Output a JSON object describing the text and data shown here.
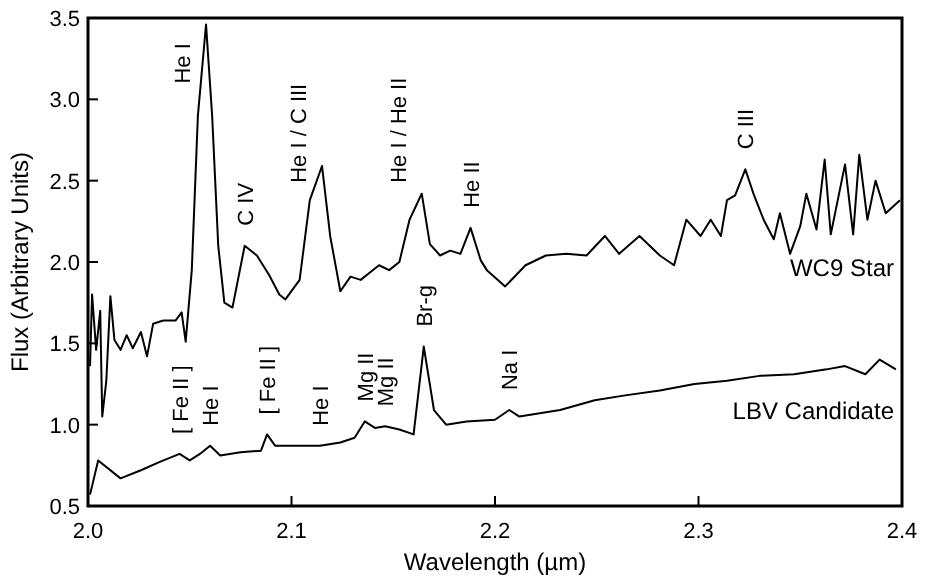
{
  "chart_data": {
    "type": "line",
    "xlabel": "Wavelength (µm)",
    "ylabel": "Flux (Arbitrary Units)",
    "xlim": [
      2.0,
      2.4
    ],
    "ylim": [
      0.5,
      3.5
    ],
    "xticks": [
      {
        "value": 2.0,
        "label": "2.0"
      },
      {
        "value": 2.1,
        "label": "2.1"
      },
      {
        "value": 2.2,
        "label": "2.2"
      },
      {
        "value": 2.3,
        "label": "2.3"
      },
      {
        "value": 2.4,
        "label": "2.4"
      }
    ],
    "yticks": [
      {
        "value": 0.5,
        "label": "0.5"
      },
      {
        "value": 1.0,
        "label": "1.0"
      },
      {
        "value": 1.5,
        "label": "1.5"
      },
      {
        "value": 2.0,
        "label": "2.0"
      },
      {
        "value": 2.5,
        "label": "2.5"
      },
      {
        "value": 3.0,
        "label": "3.0"
      },
      {
        "value": 3.5,
        "label": "3.5"
      }
    ],
    "grid": false,
    "marker": "none",
    "line_style": "solid",
    "series": [
      {
        "name": "WC9 Star",
        "color": "#000000",
        "x": [
          2.001,
          2.002,
          2.004,
          2.006,
          2.007,
          2.009,
          2.011,
          2.013,
          2.016,
          2.019,
          2.022,
          2.026,
          2.029,
          2.032,
          2.037,
          2.043,
          2.046,
          2.048,
          2.051,
          2.054,
          2.058,
          2.061,
          2.064,
          2.067,
          2.071,
          2.077,
          2.083,
          2.089,
          2.094,
          2.097,
          2.104,
          2.109,
          2.115,
          2.119,
          2.124,
          2.129,
          2.134,
          2.139,
          2.143,
          2.148,
          2.153,
          2.158,
          2.164,
          2.168,
          2.173,
          2.178,
          2.183,
          2.188,
          2.193,
          2.196,
          2.205,
          2.215,
          2.225,
          2.235,
          2.245,
          2.254,
          2.261,
          2.271,
          2.281,
          2.288,
          2.294,
          2.301,
          2.306,
          2.311,
          2.314,
          2.318,
          2.323,
          2.327,
          2.332,
          2.337,
          2.34,
          2.345,
          2.35,
          2.353,
          2.358,
          2.362,
          2.365,
          2.372,
          2.376,
          2.379,
          2.383,
          2.387,
          2.392,
          2.399
        ],
        "values": [
          1.36,
          1.8,
          1.46,
          1.7,
          1.05,
          1.27,
          1.79,
          1.52,
          1.46,
          1.55,
          1.47,
          1.57,
          1.42,
          1.62,
          1.64,
          1.64,
          1.69,
          1.51,
          1.95,
          2.9,
          3.46,
          2.9,
          2.1,
          1.75,
          1.72,
          2.1,
          2.04,
          1.92,
          1.8,
          1.77,
          1.89,
          2.38,
          2.59,
          2.16,
          1.82,
          1.91,
          1.89,
          1.94,
          1.98,
          1.95,
          2.0,
          2.26,
          2.42,
          2.11,
          2.04,
          2.07,
          2.05,
          2.21,
          2.01,
          1.95,
          1.85,
          1.98,
          2.04,
          2.05,
          2.04,
          2.16,
          2.05,
          2.16,
          2.04,
          1.98,
          2.26,
          2.16,
          2.26,
          2.16,
          2.38,
          2.41,
          2.57,
          2.42,
          2.26,
          2.14,
          2.3,
          2.05,
          2.22,
          2.42,
          2.2,
          2.63,
          2.17,
          2.6,
          2.17,
          2.66,
          2.26,
          2.5,
          2.3,
          2.38
        ]
      },
      {
        "name": "LBV Candidate",
        "color": "#000000",
        "x": [
          2.001,
          2.005,
          2.016,
          2.026,
          2.035,
          2.045,
          2.05,
          2.055,
          2.06,
          2.065,
          2.075,
          2.085,
          2.088,
          2.092,
          2.104,
          2.114,
          2.124,
          2.131,
          2.136,
          2.141,
          2.146,
          2.153,
          2.16,
          2.165,
          2.17,
          2.176,
          2.186,
          2.2,
          2.207,
          2.212,
          2.232,
          2.249,
          2.264,
          2.281,
          2.298,
          2.314,
          2.33,
          2.347,
          2.363,
          2.372,
          2.382,
          2.389,
          2.397
        ],
        "values": [
          0.57,
          0.78,
          0.67,
          0.72,
          0.77,
          0.82,
          0.78,
          0.82,
          0.87,
          0.81,
          0.83,
          0.84,
          0.94,
          0.87,
          0.87,
          0.87,
          0.89,
          0.92,
          1.02,
          0.98,
          0.99,
          0.97,
          0.94,
          1.48,
          1.09,
          1.0,
          1.02,
          1.03,
          1.09,
          1.05,
          1.09,
          1.15,
          1.18,
          1.21,
          1.25,
          1.27,
          1.3,
          1.31,
          1.34,
          1.36,
          1.31,
          1.4,
          1.34
        ]
      }
    ],
    "annotations": [
      {
        "text": "He I",
        "x": 2.058,
        "y": 3.46
      },
      {
        "text": "C IV",
        "x": 2.077,
        "y": 2.1
      },
      {
        "text": "He I / C III",
        "x": 2.115,
        "y": 2.59
      },
      {
        "text": "He I / He II",
        "x": 2.164,
        "y": 2.42
      },
      {
        "text": "He II",
        "x": 2.188,
        "y": 2.21
      },
      {
        "text": "C III",
        "x": 2.323,
        "y": 2.57
      },
      {
        "text": "[ Fe II ]",
        "x": 2.045,
        "y": 0.82
      },
      {
        "text": "He I",
        "x": 2.06,
        "y": 0.87
      },
      {
        "text": "[ Fe II ]",
        "x": 2.088,
        "y": 0.94
      },
      {
        "text": "He I",
        "x": 2.114,
        "y": 0.87
      },
      {
        "text": "Mg II",
        "x": 2.136,
        "y": 1.02
      },
      {
        "text": "Mg II",
        "x": 2.146,
        "y": 0.99
      },
      {
        "text": "Br-g",
        "x": 2.165,
        "y": 1.48
      },
      {
        "text": "Na I",
        "x": 2.207,
        "y": 1.09
      }
    ]
  }
}
